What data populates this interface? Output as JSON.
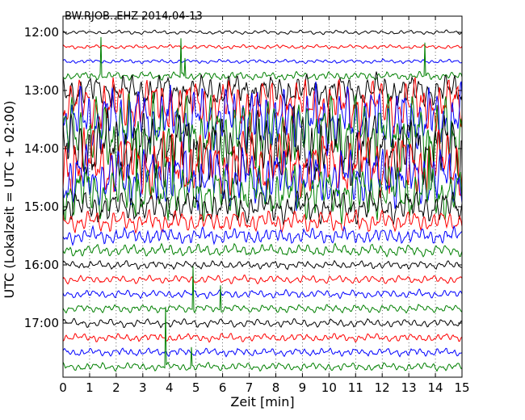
{
  "chart_data": {
    "type": "line",
    "title": "BW.RJOB..EHZ 2014-04-13",
    "xlabel": "Zeit  [min]",
    "ylabel": "UTC (Lokalzeit = UTC + 02:00)",
    "xlim": [
      0,
      15
    ],
    "x_ticks": [
      "0",
      "1",
      "2",
      "3",
      "4",
      "5",
      "6",
      "7",
      "8",
      "9",
      "10",
      "11",
      "12",
      "13",
      "14",
      "15"
    ],
    "y_tick_labels": [
      "12:00",
      "13:00",
      "14:00",
      "15:00",
      "16:00",
      "17:00"
    ],
    "grid": "vertical dotted",
    "line_colors": [
      "#000000",
      "#ff0000",
      "#0000ff",
      "#008000"
    ],
    "traces": [
      {
        "start": "12:00",
        "color": "#000000",
        "amplitude": 0.15
      },
      {
        "start": "12:15",
        "color": "#ff0000",
        "amplitude": 0.15
      },
      {
        "start": "12:30",
        "color": "#0000ff",
        "amplitude": 0.15
      },
      {
        "start": "12:45",
        "color": "#008000",
        "amplitude": 0.3
      },
      {
        "start": "13:00",
        "color": "#000000",
        "amplitude": 1.2
      },
      {
        "start": "13:15",
        "color": "#ff0000",
        "amplitude": 2.0
      },
      {
        "start": "13:30",
        "color": "#0000ff",
        "amplitude": 2.5
      },
      {
        "start": "13:45",
        "color": "#008000",
        "amplitude": 2.8
      },
      {
        "start": "14:00",
        "color": "#000000",
        "amplitude": 2.8
      },
      {
        "start": "14:15",
        "color": "#ff0000",
        "amplitude": 2.5
      },
      {
        "start": "14:30",
        "color": "#0000ff",
        "amplitude": 2.2
      },
      {
        "start": "14:45",
        "color": "#008000",
        "amplitude": 2.0
      },
      {
        "start": "15:00",
        "color": "#000000",
        "amplitude": 1.2
      },
      {
        "start": "15:15",
        "color": "#ff0000",
        "amplitude": 0.8
      },
      {
        "start": "15:30",
        "color": "#0000ff",
        "amplitude": 0.6
      },
      {
        "start": "15:45",
        "color": "#008000",
        "amplitude": 0.45
      },
      {
        "start": "16:00",
        "color": "#000000",
        "amplitude": 0.3
      },
      {
        "start": "16:15",
        "color": "#ff0000",
        "amplitude": 0.3
      },
      {
        "start": "16:30",
        "color": "#0000ff",
        "amplitude": 0.3
      },
      {
        "start": "16:45",
        "color": "#008000",
        "amplitude": 0.3
      },
      {
        "start": "17:00",
        "color": "#000000",
        "amplitude": 0.3
      },
      {
        "start": "17:15",
        "color": "#ff0000",
        "amplitude": 0.3
      },
      {
        "start": "17:30",
        "color": "#0000ff",
        "amplitude": 0.3
      },
      {
        "start": "17:45",
        "color": "#008000",
        "amplitude": 0.3
      }
    ]
  }
}
